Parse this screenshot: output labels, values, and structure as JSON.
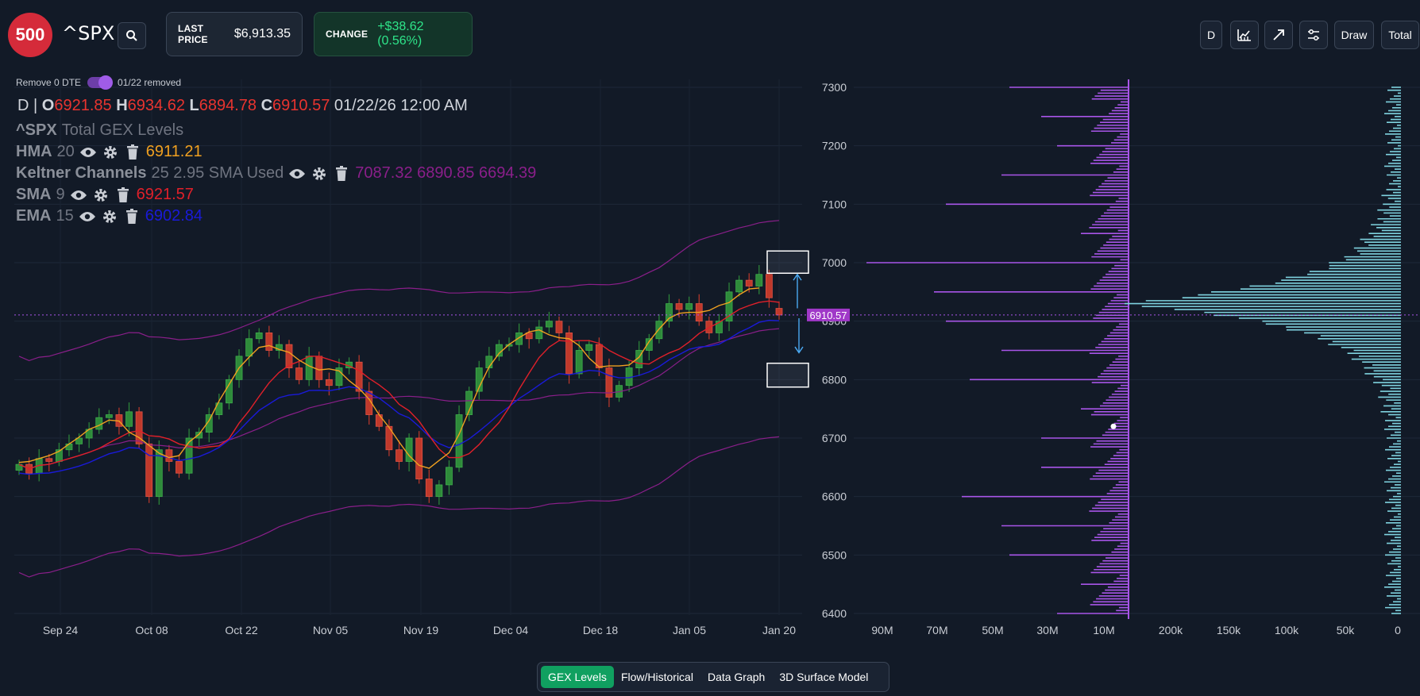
{
  "header": {
    "logo_text": "500",
    "ticker": "^SPX",
    "last_price_label": "LAST PRICE",
    "last_price_value": "$6,913.35",
    "change_label": "CHANGE",
    "change_value": "+$38.62 (0.56%)",
    "tools": [
      {
        "label": "D",
        "icon": ""
      },
      {
        "label": "",
        "icon": "chart-type-icon"
      },
      {
        "label": "",
        "icon": "trend-line-icon"
      },
      {
        "label": "",
        "icon": "settings-sliders-icon"
      },
      {
        "label": "Draw",
        "icon": ""
      },
      {
        "label": "Total",
        "icon": ""
      }
    ]
  },
  "toggle": {
    "label": "Remove 0 DTE",
    "status": "01/22 removed",
    "on": true
  },
  "ohlc": {
    "interval": "D",
    "sep": "|",
    "o_label": "O",
    "o": "6921.85",
    "h_label": "H",
    "h": "6934.62",
    "l_label": "L",
    "l": "6894.78",
    "c_label": "C",
    "c": "6910.57",
    "datetime": "01/22/26 12:00 AM"
  },
  "study_title": {
    "ticker": "^SPX",
    "rest": "Total GEX Levels"
  },
  "indicators": [
    {
      "name": "HMA",
      "params": "20",
      "values": "6911.21",
      "color": "#f0a020"
    },
    {
      "name": "Keltner Channels",
      "params": "25 2.95 SMA Used",
      "values": "7087.32 6890.85 6694.39",
      "color": "#8a1f8a"
    },
    {
      "name": "SMA",
      "params": "9",
      "values": "6921.57",
      "color": "#e0202a"
    },
    {
      "name": "EMA",
      "params": "15",
      "values": "6902.84",
      "color": "#1a1ad8"
    }
  ],
  "price_marker": "6910.57",
  "price_axis": [
    "7300",
    "7200",
    "7100",
    "7000",
    "6900",
    "6800",
    "6700",
    "6600",
    "6500",
    "6400"
  ],
  "x_axis": [
    "Sep 24",
    "Oct 08",
    "Oct 22",
    "Nov 05",
    "Nov 19",
    "Dec 04",
    "Dec 18",
    "Jan 05",
    "Jan 20"
  ],
  "gex_axis": [
    "90M",
    "70M",
    "50M",
    "30M",
    "10M"
  ],
  "oi_axis": [
    "200k",
    "150k",
    "100k",
    "50k",
    "0"
  ],
  "bottom_tabs": [
    {
      "label": "GEX Levels",
      "active": true
    },
    {
      "label": "Flow/Historical",
      "active": false
    },
    {
      "label": "Data Graph",
      "active": false
    },
    {
      "label": "3D Surface Model",
      "active": false
    }
  ],
  "colors": {
    "background": "#121a27",
    "up": "#2e8b3a",
    "down": "#c0392b",
    "hma": "#f0a020",
    "keltner": "#8a1f8a",
    "sma": "#e0202a",
    "ema": "#1a1ad8",
    "gex_bar": "#a855e8",
    "oi_bar": "#7fd3e0"
  }
}
